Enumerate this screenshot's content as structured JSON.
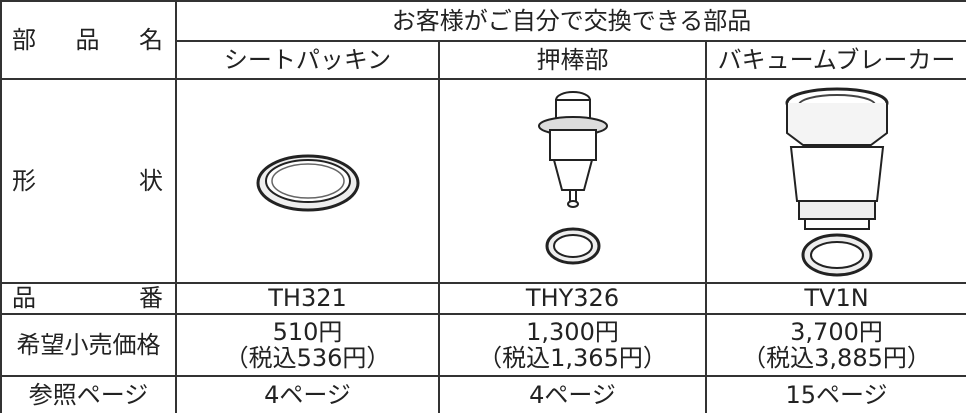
{
  "table": {
    "header": {
      "row_label": "部品名",
      "group": "お客様がご自分で交換できる部品",
      "parts": [
        "シートパッキン",
        "押棒部",
        "バキュームブレーカー"
      ]
    },
    "shape": {
      "label": "形状"
    },
    "part_number": {
      "label": "品番",
      "values": [
        "TH321",
        "THY326",
        "TV1N"
      ]
    },
    "price": {
      "label": "希望小売価格",
      "values": [
        {
          "price": "510円",
          "tax_included": "（税込536円）"
        },
        {
          "price": "1,300円",
          "tax_included": "（税込1,365円）"
        },
        {
          "price": "3,700円",
          "tax_included": "（税込3,885円）"
        }
      ]
    },
    "reference": {
      "label": "参照ページ",
      "values": [
        "4ページ",
        "4ページ",
        "15ページ"
      ]
    }
  }
}
